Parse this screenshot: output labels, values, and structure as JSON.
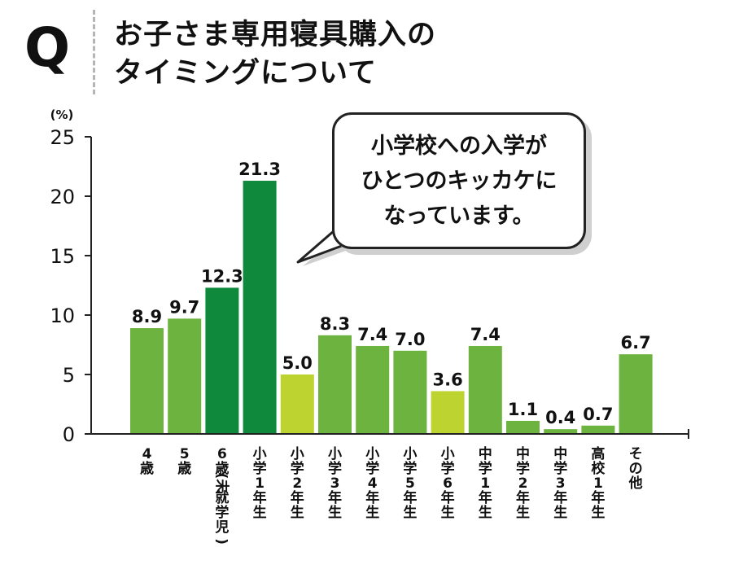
{
  "header": {
    "q_mark": "Q",
    "title_lines": [
      "お子さま専用寝具購入の",
      "タイミングについて"
    ]
  },
  "callout": {
    "lines": [
      "小学校への入学が",
      "ひとつのキッカケに",
      "なっています。"
    ]
  },
  "colors": {
    "light": "#6db33f",
    "dark": "#0f8a3c",
    "yellow": "#bcd330",
    "axis": "#222222"
  },
  "chart_data": {
    "type": "bar",
    "title": "お子さま専用寝具購入のタイミングについて",
    "ylabel": "(%)",
    "xlabel": "",
    "ylim": [
      0,
      25
    ],
    "yticks": [
      0,
      5,
      10,
      15,
      20,
      25
    ],
    "grid": false,
    "categories": [
      "4歳",
      "5歳",
      "6歳(未就学児)",
      "小学1年生",
      "小学2年生",
      "小学3年生",
      "小学4年生",
      "小学5年生",
      "小学6年生",
      "中学1年生",
      "中学2年生",
      "中学3年生",
      "高校1年生",
      "その他"
    ],
    "category_labels": [
      "4\n歳",
      "5\n歳",
      "6\n歳\n(未\n就\n学\n児\n)",
      "小\n学\n1\n年\n生",
      "小\n学\n2\n年\n生",
      "小\n学\n3\n年\n生",
      "小\n学\n4\n年\n生",
      "小\n学\n5\n年\n生",
      "小\n学\n6\n年\n生",
      "中\n学\n1\n年\n生",
      "中\n学\n2\n年\n生",
      "中\n学\n3\n年\n生",
      "高\n校\n1\n年\n生",
      "そ\nの\n他"
    ],
    "values": [
      8.9,
      9.7,
      12.3,
      21.3,
      5.0,
      8.3,
      7.4,
      7.0,
      3.6,
      7.4,
      1.1,
      0.4,
      0.7,
      6.7
    ],
    "value_labels": [
      "8.9",
      "9.7",
      "12.3",
      "21.3",
      "5.0",
      "8.3",
      "7.4",
      "7.0",
      "3.6",
      "7.4",
      "1.1",
      "0.4",
      "0.7",
      "6.7"
    ],
    "bar_color_groups": [
      "light",
      "light",
      "dark",
      "dark",
      "yellow",
      "light",
      "light",
      "light",
      "yellow",
      "light",
      "light",
      "light",
      "light",
      "light"
    ]
  }
}
